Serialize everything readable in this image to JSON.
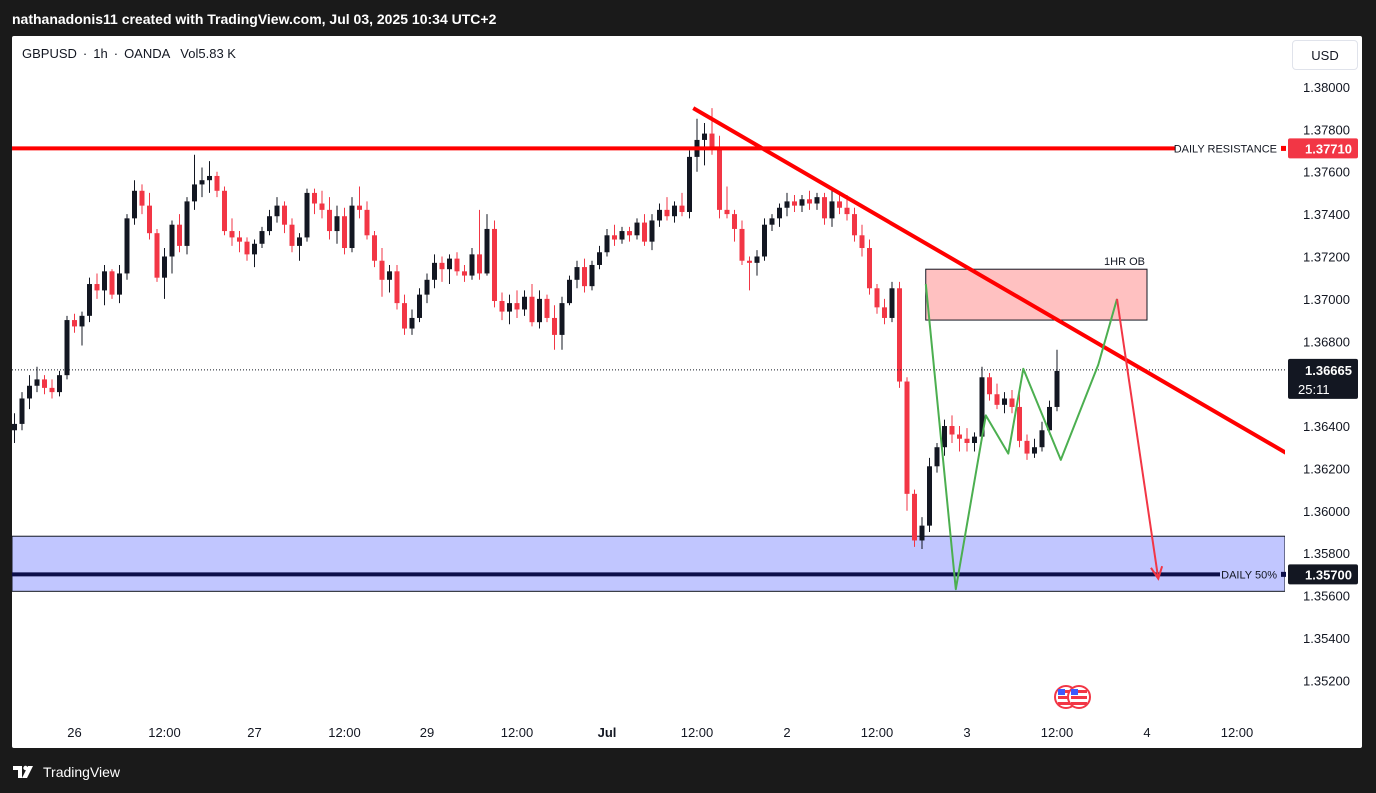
{
  "header": {
    "attribution": "nathanadonis11 created with TradingView.com, Jul 03, 2025 10:34 UTC+2"
  },
  "symbol": {
    "pair": "GBPUSD",
    "sep1": "·",
    "timeframe": "1h",
    "sep2": "·",
    "broker": "OANDA",
    "volume_label": "Vol",
    "volume": "5.83 K"
  },
  "currency_button": "USD",
  "footer": {
    "brand": "TradingView"
  },
  "icons": {
    "events": "us-flag-event-icon",
    "logo": "tradingview-logo-icon"
  },
  "colors": {
    "up": "#131722",
    "down": "#f23645",
    "resistance": "#ff0000",
    "ob_fill": "#ffc1c1",
    "zone_fill": "#c1c6ff",
    "fifty_line": "#0d0f4a",
    "trend": "#ff0000",
    "green_path": "#4caf50",
    "red_arrow": "#f23645"
  },
  "chart_data": {
    "type": "candlestick",
    "symbol": "GBPUSD",
    "ylim": [
      1.3506,
      1.3808
    ],
    "y_ticks": [
      "1.38000",
      "1.37800",
      "1.37600",
      "1.37400",
      "1.37200",
      "1.37000",
      "1.36800",
      "1.36400",
      "1.36200",
      "1.36000",
      "1.35800",
      "1.35600",
      "1.35400",
      "1.35200"
    ],
    "x_ticks": [
      {
        "label": "26",
        "i": 8
      },
      {
        "label": "12:00",
        "i": 20
      },
      {
        "label": "27",
        "i": 32
      },
      {
        "label": "12:00",
        "i": 44
      },
      {
        "label": "29",
        "i": 55
      },
      {
        "label": "12:00",
        "i": 67
      },
      {
        "label": "Jul",
        "i": 79
      },
      {
        "label": "12:00",
        "i": 91
      },
      {
        "label": "2",
        "i": 103
      },
      {
        "label": "12:00",
        "i": 115
      },
      {
        "label": "3",
        "i": 127
      },
      {
        "label": "12:00",
        "i": 139
      },
      {
        "label": "4",
        "i": 151
      },
      {
        "label": "12:00",
        "i": 163
      }
    ],
    "candles": [
      [
        1.3638,
        1.3646,
        1.3632,
        1.3641
      ],
      [
        1.3641,
        1.3656,
        1.3638,
        1.3653
      ],
      [
        1.3653,
        1.3664,
        1.3648,
        1.3659
      ],
      [
        1.3659,
        1.3668,
        1.3656,
        1.3662
      ],
      [
        1.3662,
        1.3664,
        1.3655,
        1.3658
      ],
      [
        1.3658,
        1.3662,
        1.3653,
        1.3656
      ],
      [
        1.3656,
        1.3666,
        1.3654,
        1.3664
      ],
      [
        1.3664,
        1.3692,
        1.3662,
        1.369
      ],
      [
        1.369,
        1.3693,
        1.3684,
        1.3687
      ],
      [
        1.3687,
        1.3694,
        1.3678,
        1.3692
      ],
      [
        1.3692,
        1.371,
        1.3689,
        1.3707
      ],
      [
        1.3707,
        1.3712,
        1.37,
        1.3704
      ],
      [
        1.3704,
        1.3716,
        1.3697,
        1.3713
      ],
      [
        1.3713,
        1.3714,
        1.37,
        1.3702
      ],
      [
        1.3702,
        1.3716,
        1.3698,
        1.3712
      ],
      [
        1.3712,
        1.374,
        1.3709,
        1.3738
      ],
      [
        1.3738,
        1.3756,
        1.3735,
        1.3751
      ],
      [
        1.3751,
        1.3754,
        1.374,
        1.3744
      ],
      [
        1.3744,
        1.375,
        1.3728,
        1.3731
      ],
      [
        1.3731,
        1.3733,
        1.3708,
        1.371
      ],
      [
        1.371,
        1.3724,
        1.37,
        1.372
      ],
      [
        1.372,
        1.3737,
        1.3712,
        1.3735
      ],
      [
        1.3735,
        1.374,
        1.3722,
        1.3725
      ],
      [
        1.3725,
        1.3748,
        1.3721,
        1.3746
      ],
      [
        1.3746,
        1.3768,
        1.3742,
        1.3754
      ],
      [
        1.3754,
        1.3762,
        1.3748,
        1.3756
      ],
      [
        1.3756,
        1.3765,
        1.375,
        1.3758
      ],
      [
        1.3758,
        1.376,
        1.3748,
        1.3751
      ],
      [
        1.3751,
        1.3753,
        1.373,
        1.3732
      ],
      [
        1.3732,
        1.3738,
        1.3725,
        1.3729
      ],
      [
        1.3729,
        1.3732,
        1.3722,
        1.3727
      ],
      [
        1.3727,
        1.3729,
        1.3718,
        1.3721
      ],
      [
        1.3721,
        1.3728,
        1.3715,
        1.3726
      ],
      [
        1.3726,
        1.3734,
        1.3724,
        1.3732
      ],
      [
        1.3732,
        1.3742,
        1.373,
        1.3739
      ],
      [
        1.3739,
        1.3748,
        1.3736,
        1.3744
      ],
      [
        1.3744,
        1.3746,
        1.3731,
        1.3735
      ],
      [
        1.3735,
        1.3738,
        1.3722,
        1.3725
      ],
      [
        1.3725,
        1.3731,
        1.3718,
        1.3729
      ],
      [
        1.3729,
        1.3752,
        1.3727,
        1.375
      ],
      [
        1.375,
        1.3752,
        1.374,
        1.3745
      ],
      [
        1.3745,
        1.3751,
        1.3738,
        1.3742
      ],
      [
        1.3742,
        1.3748,
        1.3728,
        1.3732
      ],
      [
        1.3732,
        1.3744,
        1.3726,
        1.3739
      ],
      [
        1.3739,
        1.3743,
        1.3721,
        1.3724
      ],
      [
        1.3724,
        1.3748,
        1.3722,
        1.3744
      ],
      [
        1.3744,
        1.3753,
        1.3738,
        1.3742
      ],
      [
        1.3742,
        1.3746,
        1.3728,
        1.373
      ],
      [
        1.373,
        1.3732,
        1.3715,
        1.3718
      ],
      [
        1.3718,
        1.3724,
        1.3701,
        1.3709
      ],
      [
        1.3709,
        1.3716,
        1.3703,
        1.3713
      ],
      [
        1.3713,
        1.3716,
        1.3695,
        1.3698
      ],
      [
        1.3698,
        1.3702,
        1.3683,
        1.3686
      ],
      [
        1.3686,
        1.3695,
        1.3683,
        1.3691
      ],
      [
        1.3691,
        1.3705,
        1.3689,
        1.3702
      ],
      [
        1.3702,
        1.3712,
        1.3698,
        1.3709
      ],
      [
        1.3709,
        1.3721,
        1.3705,
        1.3717
      ],
      [
        1.3717,
        1.372,
        1.3708,
        1.3714
      ],
      [
        1.3714,
        1.3721,
        1.3707,
        1.3719
      ],
      [
        1.3719,
        1.3722,
        1.3711,
        1.3713
      ],
      [
        1.3713,
        1.3716,
        1.3708,
        1.3711
      ],
      [
        1.3711,
        1.3724,
        1.3709,
        1.3721
      ],
      [
        1.3721,
        1.3742,
        1.3709,
        1.3712
      ],
      [
        1.3712,
        1.374,
        1.3711,
        1.3733
      ],
      [
        1.3733,
        1.3737,
        1.3696,
        1.3699
      ],
      [
        1.3699,
        1.3703,
        1.369,
        1.3694
      ],
      [
        1.3694,
        1.3702,
        1.3688,
        1.3698
      ],
      [
        1.3698,
        1.3704,
        1.3691,
        1.3695
      ],
      [
        1.3695,
        1.3704,
        1.3692,
        1.3701
      ],
      [
        1.3701,
        1.3707,
        1.3687,
        1.3689
      ],
      [
        1.3689,
        1.3704,
        1.3686,
        1.37
      ],
      [
        1.37,
        1.3702,
        1.3689,
        1.3691
      ],
      [
        1.3691,
        1.3697,
        1.3676,
        1.3683
      ],
      [
        1.3683,
        1.3701,
        1.3676,
        1.3698
      ],
      [
        1.3698,
        1.3711,
        1.3697,
        1.3709
      ],
      [
        1.3709,
        1.3718,
        1.3705,
        1.3715
      ],
      [
        1.3715,
        1.3719,
        1.3703,
        1.3706
      ],
      [
        1.3706,
        1.3718,
        1.3704,
        1.3716
      ],
      [
        1.3716,
        1.3725,
        1.3714,
        1.3722
      ],
      [
        1.3722,
        1.3733,
        1.372,
        1.373
      ],
      [
        1.373,
        1.3735,
        1.3725,
        1.3728
      ],
      [
        1.3728,
        1.3734,
        1.3726,
        1.3732
      ],
      [
        1.3732,
        1.3734,
        1.3727,
        1.373
      ],
      [
        1.373,
        1.3738,
        1.3728,
        1.3736
      ],
      [
        1.3736,
        1.374,
        1.3725,
        1.3727
      ],
      [
        1.3727,
        1.374,
        1.3723,
        1.3737
      ],
      [
        1.3737,
        1.3745,
        1.3734,
        1.3742
      ],
      [
        1.3742,
        1.3748,
        1.3737,
        1.3739
      ],
      [
        1.3739,
        1.3746,
        1.3736,
        1.3744
      ],
      [
        1.3744,
        1.375,
        1.3739,
        1.3741
      ],
      [
        1.3741,
        1.377,
        1.3738,
        1.3767
      ],
      [
        1.3767,
        1.3785,
        1.376,
        1.3775
      ],
      [
        1.3775,
        1.3783,
        1.3763,
        1.3778
      ],
      [
        1.3778,
        1.379,
        1.3768,
        1.3771
      ],
      [
        1.3771,
        1.3777,
        1.3738,
        1.3742
      ],
      [
        1.3742,
        1.3753,
        1.3738,
        1.374
      ],
      [
        1.374,
        1.3742,
        1.3727,
        1.3733
      ],
      [
        1.3733,
        1.3737,
        1.3716,
        1.3718
      ],
      [
        1.3718,
        1.372,
        1.3704,
        1.3717
      ],
      [
        1.3717,
        1.3723,
        1.3711,
        1.372
      ],
      [
        1.372,
        1.3738,
        1.3718,
        1.3735
      ],
      [
        1.3735,
        1.374,
        1.3732,
        1.3738
      ],
      [
        1.3738,
        1.3745,
        1.3734,
        1.3743
      ],
      [
        1.3743,
        1.375,
        1.3739,
        1.3746
      ],
      [
        1.3746,
        1.3749,
        1.3741,
        1.3744
      ],
      [
        1.3744,
        1.3749,
        1.3741,
        1.3747
      ],
      [
        1.3747,
        1.3751,
        1.3742,
        1.3745
      ],
      [
        1.3745,
        1.375,
        1.3742,
        1.3748
      ],
      [
        1.3748,
        1.375,
        1.3735,
        1.3738
      ],
      [
        1.3738,
        1.3752,
        1.3734,
        1.3746
      ],
      [
        1.3746,
        1.375,
        1.374,
        1.3743
      ],
      [
        1.3743,
        1.3749,
        1.3737,
        1.374
      ],
      [
        1.374,
        1.3743,
        1.3727,
        1.373
      ],
      [
        1.373,
        1.3735,
        1.372,
        1.3724
      ],
      [
        1.3724,
        1.3728,
        1.3702,
        1.3705
      ],
      [
        1.3705,
        1.3707,
        1.3693,
        1.3696
      ],
      [
        1.3696,
        1.37,
        1.3688,
        1.3691
      ],
      [
        1.3691,
        1.3708,
        1.3689,
        1.3705
      ],
      [
        1.3705,
        1.3708,
        1.3658,
        1.3661
      ],
      [
        1.3661,
        1.3663,
        1.36,
        1.3608
      ],
      [
        1.3608,
        1.361,
        1.3583,
        1.3586
      ],
      [
        1.3586,
        1.3597,
        1.3582,
        1.3593
      ],
      [
        1.3593,
        1.3625,
        1.359,
        1.3621
      ],
      [
        1.3621,
        1.3632,
        1.3618,
        1.363
      ],
      [
        1.363,
        1.3643,
        1.3626,
        1.364
      ],
      [
        1.364,
        1.3645,
        1.3632,
        1.3636
      ],
      [
        1.3636,
        1.364,
        1.3628,
        1.3634
      ],
      [
        1.3634,
        1.3639,
        1.3628,
        1.3632
      ],
      [
        1.3632,
        1.3637,
        1.3628,
        1.3635
      ],
      [
        1.3635,
        1.3668,
        1.3633,
        1.3663
      ],
      [
        1.3663,
        1.3665,
        1.3652,
        1.3655
      ],
      [
        1.3655,
        1.366,
        1.3648,
        1.365
      ],
      [
        1.365,
        1.3656,
        1.3646,
        1.3653
      ],
      [
        1.3653,
        1.3657,
        1.3646,
        1.3649
      ],
      [
        1.3649,
        1.3655,
        1.363,
        1.3633
      ],
      [
        1.3633,
        1.3636,
        1.3624,
        1.3627
      ],
      [
        1.3627,
        1.3634,
        1.3625,
        1.363
      ],
      [
        1.363,
        1.3642,
        1.3628,
        1.3638
      ],
      [
        1.3638,
        1.3652,
        1.3636,
        1.3649
      ],
      [
        1.3649,
        1.3676,
        1.3647,
        1.3666
      ]
    ],
    "price_labels": {
      "last": "1.36665",
      "countdown": "25:11",
      "resistance": "1.37710",
      "fifty": "1.35700"
    },
    "annotations": {
      "resistance_label": "DAILY RESISTANCE",
      "fifty_label": "DAILY 50%",
      "ob_label": "1HR OB"
    },
    "levels": {
      "resistance": 1.3771,
      "fifty": 1.357,
      "last": 1.36665,
      "zone": [
        1.3562,
        1.3588
      ],
      "ob": [
        1.369,
        1.3714
      ],
      "ob_i": [
        121.5,
        151
      ]
    },
    "trendline": [
      [
        90.5,
        1.379
      ],
      [
        176,
        1.3614
      ]
    ],
    "green_path": [
      [
        121.5,
        1.3707
      ],
      [
        125.5,
        1.3563
      ],
      [
        129.5,
        1.3645
      ],
      [
        132.5,
        1.3627
      ],
      [
        134.5,
        1.3667
      ],
      [
        139.5,
        1.3624
      ],
      [
        144.5,
        1.3669
      ],
      [
        147,
        1.37
      ]
    ],
    "red_arrow": [
      [
        147,
        1.37
      ],
      [
        152.5,
        1.3568
      ]
    ]
  }
}
